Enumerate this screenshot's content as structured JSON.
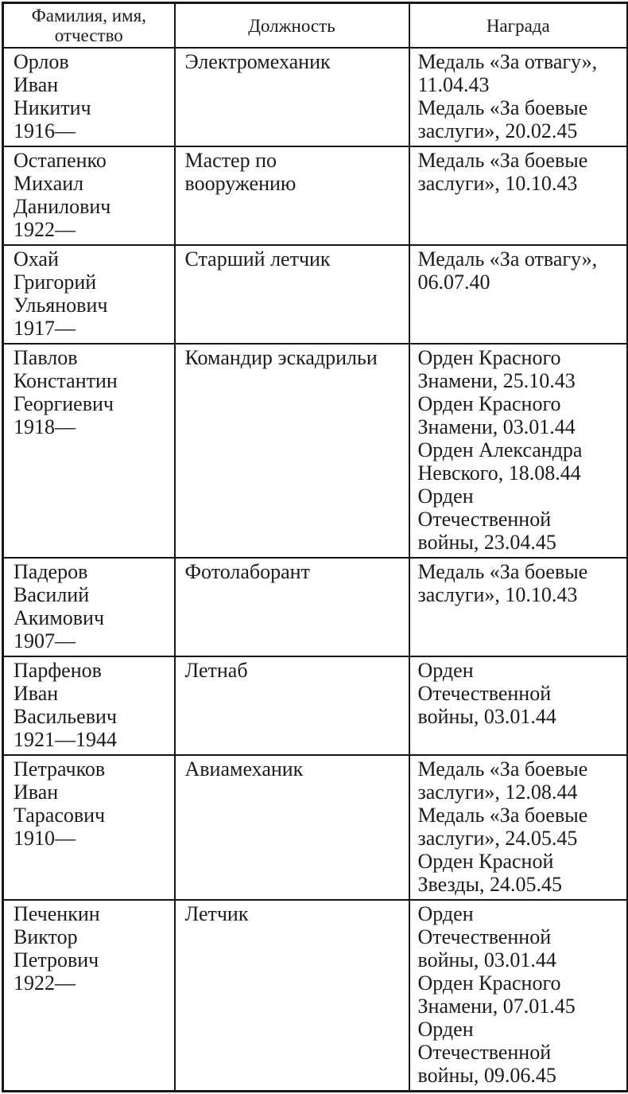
{
  "colors": {
    "background": "#ffffff",
    "text": "#1b1b1b",
    "border": "#161616"
  },
  "table": {
    "headers": [
      "Фамилия, имя,\nотчество",
      "Должность",
      "Награда"
    ],
    "rows": [
      {
        "name": "Орлов\nИван\nНикитич\n1916—",
        "position": "Электромеханик",
        "awards": "Медаль «За отвагу»,\n11.04.43\nМедаль «За боевые\nзаслуги», 20.02.45"
      },
      {
        "name": "Остапенко\nМихаил\nДанилович\n1922—",
        "position": "Мастер по\nвооружению",
        "awards": "Медаль «За боевые\nзаслуги», 10.10.43"
      },
      {
        "name": "Охай\nГригорий\nУльянович\n1917—",
        "position": "Старший летчик",
        "awards": "Медаль «За отвагу»,\n06.07.40"
      },
      {
        "name": "Павлов\nКонстантин\nГеоргиевич\n1918—",
        "position": "Командир эскадрильи",
        "awards": "Орден Красного\nЗнамени, 25.10.43\nОрден Красного\nЗнамени, 03.01.44\nОрден Александра\nНевского, 18.08.44\nОрден\nОтечественной\nвойны, 23.04.45"
      },
      {
        "name": "Падеров\nВасилий\nАкимович\n1907—",
        "position": "Фотолаборант",
        "awards": "Медаль «За боевые\nзаслуги», 10.10.43"
      },
      {
        "name": "Парфенов\nИван\nВасильевич\n1921—1944",
        "position": "Летнаб",
        "awards": "Орден\nОтечественной\nвойны, 03.01.44"
      },
      {
        "name": "Петрачков\nИван\nТарасович\n1910—",
        "position": "Авиамеханик",
        "awards": "Медаль «За боевые\nзаслуги», 12.08.44\nМедаль «За боевые\nзаслуги», 24.05.45\nОрден Красной\nЗвезды, 24.05.45"
      },
      {
        "name": "Печенкин\nВиктор\nПетрович\n1922—",
        "position": "Летчик",
        "awards": "Орден\nОтечественной\nвойны, 03.01.44\nОрден Красного\nЗнамени, 07.01.45\nОрден\nОтечественной\nвойны, 09.06.45"
      }
    ]
  }
}
